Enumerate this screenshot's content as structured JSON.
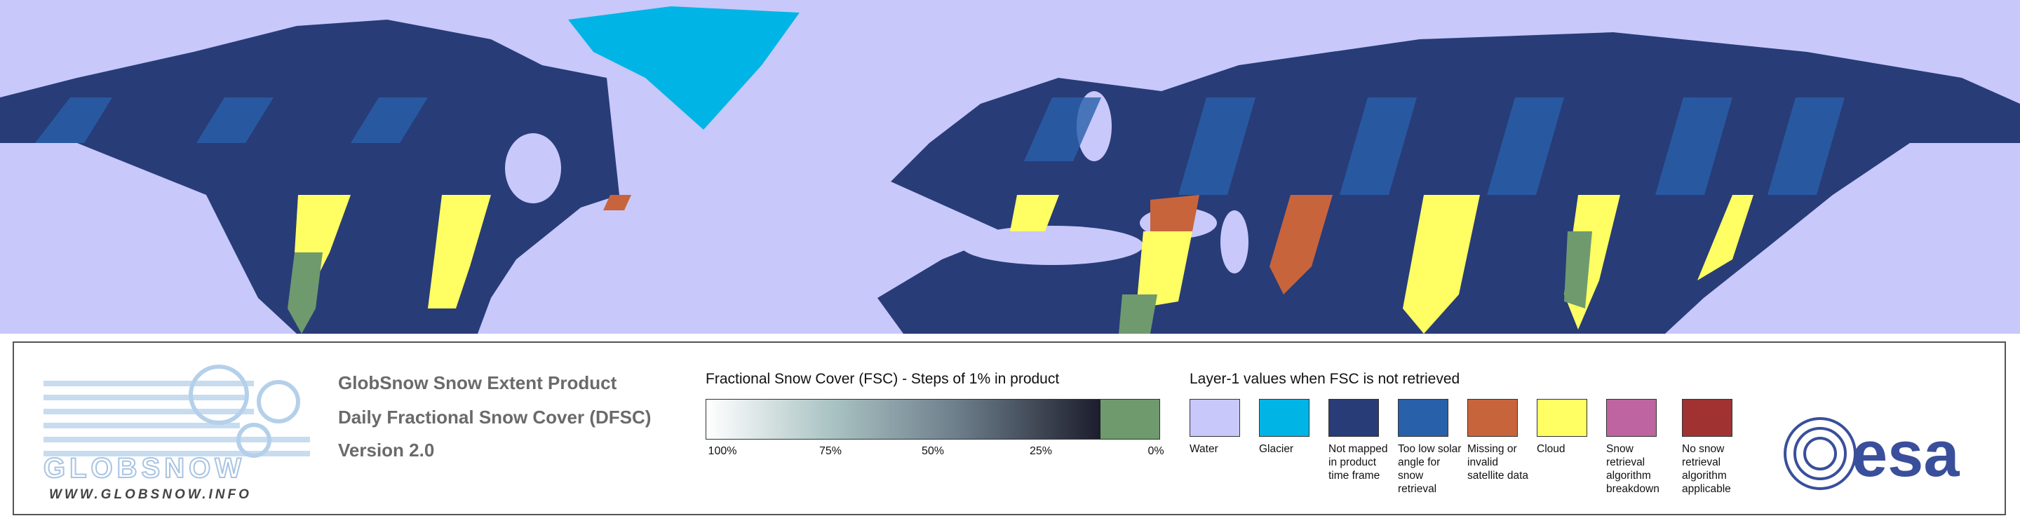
{
  "product": {
    "name": "GlobSnow Snow Extent Product",
    "subtitle": "Daily Fractional Snow Cover (DFSC)",
    "version": "Version 2.0"
  },
  "logo": {
    "name": "GLOBSNOW",
    "url": "WWW.GLOBSNOW.INFO"
  },
  "colorbar": {
    "title": "Fractional Snow Cover (FSC) - Steps of 1% in product",
    "labels": [
      "100%",
      "75%",
      "50%",
      "25%",
      "0%"
    ]
  },
  "legend": {
    "title": "Layer-1 values when FSC is not retrieved",
    "items": [
      {
        "label": "Water",
        "color": "#c8c8fa"
      },
      {
        "label": "Glacier",
        "color": "#00b4e6"
      },
      {
        "label": "Not mapped in product time frame",
        "color": "#283c78"
      },
      {
        "label": "Too low solar angle for snow retrieval",
        "color": "#2860aa"
      },
      {
        "label": "Missing or invalid satellite data",
        "color": "#c8643c"
      },
      {
        "label": "Cloud",
        "color": "#ffff64"
      },
      {
        "label": "Snow retrieval algorithm breakdown",
        "color": "#be64a0"
      },
      {
        "label": "No snow retrieval algorithm applicable",
        "color": "#a03232"
      }
    ]
  },
  "agency": "esa"
}
